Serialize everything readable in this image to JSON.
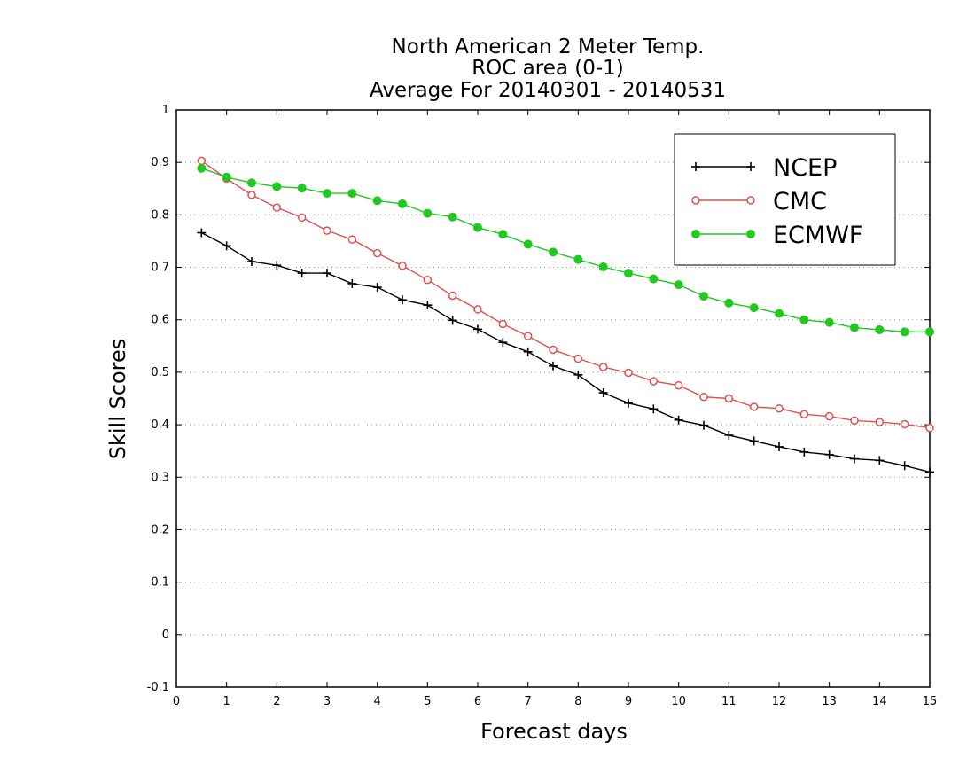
{
  "chart_data": {
    "type": "line",
    "title_lines": [
      "North American 2 Meter Temp.",
      "ROC area (0-1)",
      "Average For 20140301 - 20140531"
    ],
    "xlabel": "Forecast days",
    "ylabel": "Skill Scores",
    "xlim": [
      0,
      15
    ],
    "ylim": [
      -0.1,
      1
    ],
    "x_ticks": [
      0,
      1,
      2,
      3,
      4,
      5,
      6,
      7,
      8,
      9,
      10,
      11,
      12,
      13,
      14,
      15
    ],
    "y_ticks": [
      -0.1,
      0,
      0.1,
      0.2,
      0.3,
      0.4,
      0.5,
      0.6,
      0.7,
      0.8,
      0.9,
      1
    ],
    "y_tick_labels": [
      "-0.1",
      "0",
      "0.1",
      "0.2",
      "0.3",
      "0.4",
      "0.5",
      "0.6",
      "0.7",
      "0.8",
      "0.9",
      "1"
    ],
    "grid": "horizontal dotted",
    "legend_position": "top-right",
    "x": [
      0.5,
      1,
      1.5,
      2,
      2.5,
      3,
      3.5,
      4,
      4.5,
      5,
      5.5,
      6,
      6.5,
      7,
      7.5,
      8,
      8.5,
      9,
      9.5,
      10,
      10.5,
      11,
      11.5,
      12,
      12.5,
      13,
      13.5,
      14,
      14.5,
      15
    ],
    "series": [
      {
        "name": "NCEP",
        "color": "#000000",
        "marker": "plus",
        "values": [
          0.766,
          0.741,
          0.711,
          0.704,
          0.689,
          0.689,
          0.669,
          0.662,
          0.638,
          0.628,
          0.599,
          0.582,
          0.557,
          0.539,
          0.512,
          0.495,
          0.461,
          0.441,
          0.43,
          0.409,
          0.399,
          0.38,
          0.369,
          0.358,
          0.348,
          0.343,
          0.335,
          0.332,
          0.322,
          0.31
        ]
      },
      {
        "name": "CMC",
        "color": "#e05050",
        "marker": "open-circle",
        "values": [
          0.903,
          0.869,
          0.838,
          0.814,
          0.795,
          0.77,
          0.753,
          0.727,
          0.703,
          0.676,
          0.646,
          0.62,
          0.592,
          0.569,
          0.543,
          0.526,
          0.51,
          0.499,
          0.483,
          0.475,
          0.453,
          0.45,
          0.434,
          0.431,
          0.42,
          0.416,
          0.408,
          0.405,
          0.401,
          0.394
        ]
      },
      {
        "name": "ECMWF",
        "color": "#20c820",
        "marker": "filled-circle",
        "values": [
          0.889,
          0.872,
          0.861,
          0.854,
          0.851,
          0.841,
          0.841,
          0.827,
          0.821,
          0.803,
          0.796,
          0.776,
          0.763,
          0.744,
          0.729,
          0.715,
          0.701,
          0.689,
          0.678,
          0.667,
          0.645,
          0.632,
          0.623,
          0.612,
          0.6,
          0.595,
          0.585,
          0.581,
          0.577,
          0.577
        ]
      }
    ]
  }
}
